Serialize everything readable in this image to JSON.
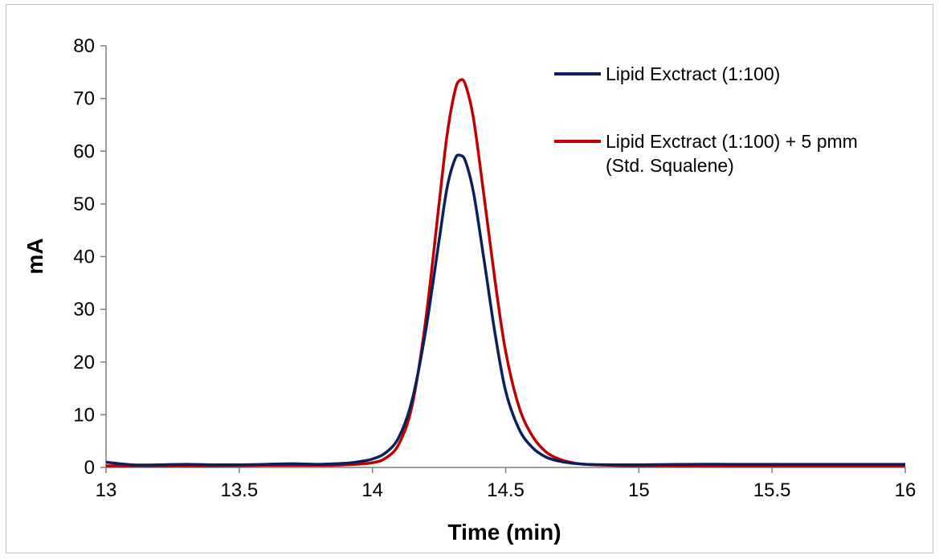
{
  "chart_data": {
    "type": "line",
    "title": "",
    "xlabel": "Time (min)",
    "ylabel": "mA",
    "xlim": [
      13,
      16
    ],
    "ylim": [
      0,
      80
    ],
    "xticks": [
      "13",
      "13.5",
      "14",
      "14.5",
      "15",
      "15.5",
      "16"
    ],
    "yticks": [
      "0",
      "10",
      "20",
      "30",
      "40",
      "50",
      "60",
      "70",
      "80"
    ],
    "grid": false,
    "legend_position": "top-right",
    "series": [
      {
        "name": "Lipid Exctract (1:100)",
        "color": "#0a1f5c",
        "x": [
          13.0,
          13.1,
          13.2,
          13.3,
          13.4,
          13.5,
          13.6,
          13.7,
          13.8,
          13.9,
          13.95,
          14.0,
          14.05,
          14.1,
          14.15,
          14.2,
          14.25,
          14.28,
          14.31,
          14.33,
          14.35,
          14.38,
          14.42,
          14.46,
          14.5,
          14.55,
          14.6,
          14.65,
          14.7,
          14.75,
          14.8,
          14.9,
          15.0,
          15.2,
          15.4,
          15.6,
          15.8,
          16.0
        ],
        "y": [
          1.0,
          0.5,
          0.5,
          0.6,
          0.5,
          0.5,
          0.6,
          0.7,
          0.6,
          0.8,
          1.1,
          1.6,
          2.8,
          5.8,
          13.0,
          26.0,
          43.0,
          53.0,
          58.5,
          59.2,
          58.0,
          52.0,
          39.0,
          25.5,
          14.5,
          7.3,
          3.8,
          2.0,
          1.2,
          0.8,
          0.6,
          0.5,
          0.5,
          0.6,
          0.6,
          0.6,
          0.6,
          0.6
        ]
      },
      {
        "name": "Lipid Exctract (1:100) + 5 pmm (Std. Squalene)",
        "color": "#c00000",
        "x": [
          13.0,
          13.2,
          13.4,
          13.6,
          13.8,
          13.9,
          14.0,
          14.05,
          14.1,
          14.15,
          14.2,
          14.25,
          14.28,
          14.31,
          14.33,
          14.35,
          14.38,
          14.42,
          14.46,
          14.5,
          14.55,
          14.6,
          14.65,
          14.7,
          14.75,
          14.8,
          14.9,
          15.0,
          15.3,
          15.6,
          16.0
        ],
        "y": [
          0.3,
          0.3,
          0.3,
          0.4,
          0.4,
          0.5,
          0.9,
          1.8,
          4.5,
          12.0,
          28.0,
          50.0,
          63.0,
          71.5,
          73.5,
          72.5,
          66.0,
          51.0,
          35.5,
          22.0,
          11.5,
          6.0,
          3.0,
          1.6,
          0.9,
          0.6,
          0.4,
          0.3,
          0.3,
          0.3,
          0.3
        ]
      }
    ]
  }
}
